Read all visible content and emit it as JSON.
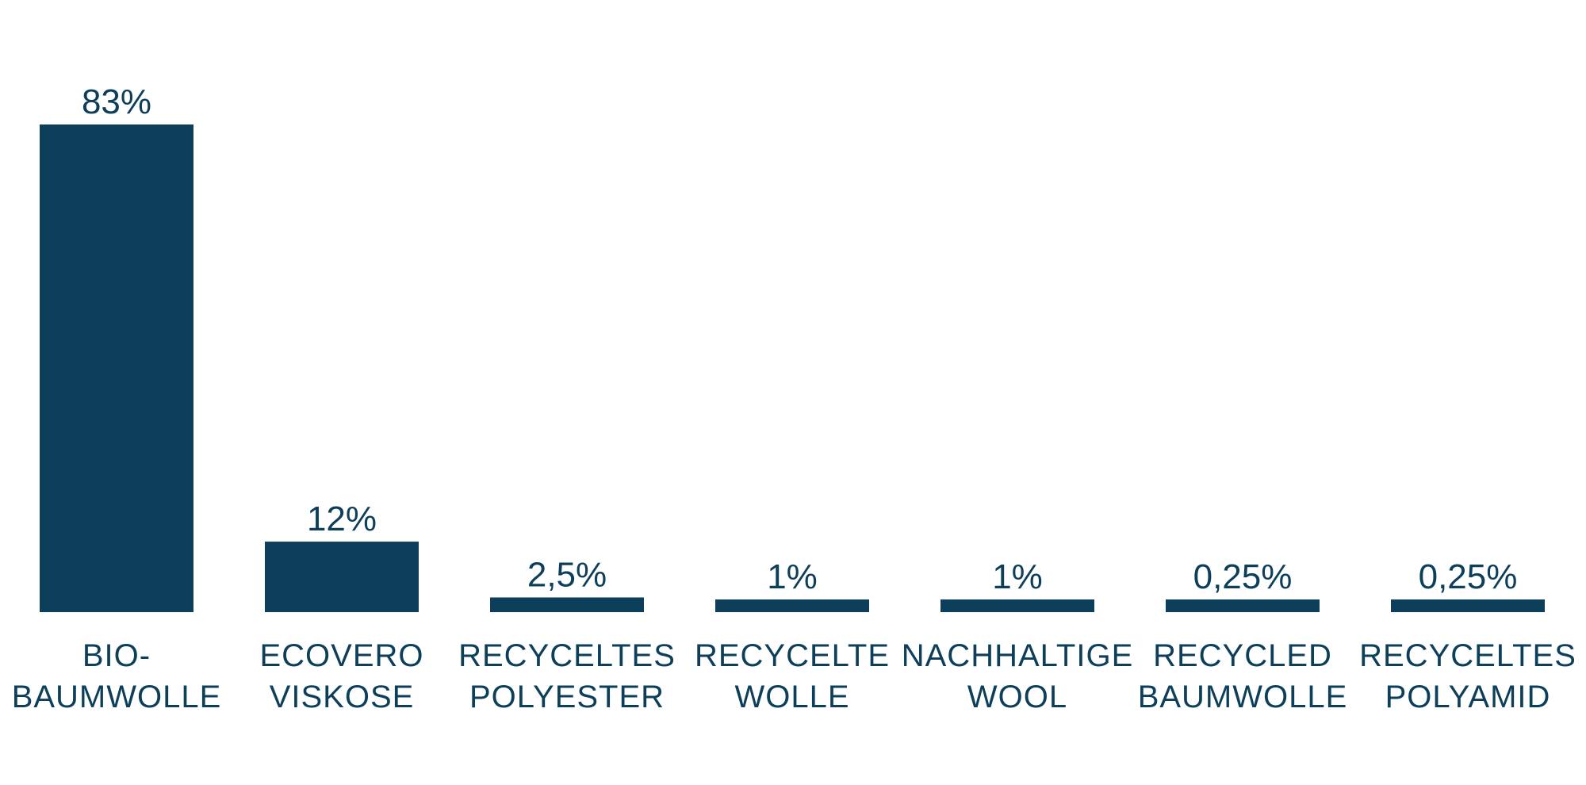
{
  "chart_data": {
    "type": "bar",
    "categories": [
      [
        "BIO-",
        "BAUMWOLLE"
      ],
      [
        "ECOVERO",
        "VISKOSE"
      ],
      [
        "RECYCELTES",
        "POLYESTER"
      ],
      [
        "RECYCELTE",
        "WOLLE"
      ],
      [
        "NACHHALTIGE",
        "WOOL"
      ],
      [
        "RECYCLED",
        "BAUMWOLLE"
      ],
      [
        "RECYCELTES",
        "POLYAMID"
      ]
    ],
    "values": [
      83,
      12,
      2.5,
      1,
      1,
      0.25,
      0.25
    ],
    "value_labels": [
      "83%",
      "12%",
      "2,5%",
      "1%",
      "1%",
      "0,25%",
      "0,25%"
    ],
    "colors": {
      "bar": "#0d3f5a",
      "text": "#0d3f5a"
    }
  }
}
